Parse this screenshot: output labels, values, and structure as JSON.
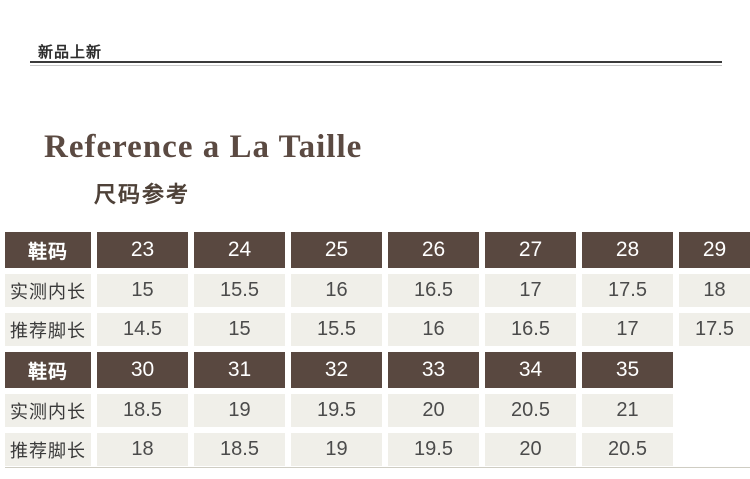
{
  "page": {
    "banner": "新品上新",
    "title": "Reference a La Taille",
    "subtitle": "尺码参考"
  },
  "colors": {
    "header_bg": "#594840",
    "cell_bg": "#f0efe9",
    "title_brown": "#5b4a42",
    "banner_text": "#2e2e2e"
  },
  "size_table": {
    "sections": [
      {
        "header": {
          "label": "鞋码",
          "sizes": [
            "23",
            "24",
            "25",
            "26",
            "27",
            "28",
            "29"
          ]
        },
        "rows": [
          {
            "label": "实测内长",
            "values": [
              "15",
              "15.5",
              "16",
              "16.5",
              "17",
              "17.5",
              "18"
            ]
          },
          {
            "label": "推荐脚长",
            "values": [
              "14.5",
              "15",
              "15.5",
              "16",
              "16.5",
              "17",
              "17.5"
            ]
          }
        ]
      },
      {
        "header": {
          "label": "鞋码",
          "sizes": [
            "30",
            "31",
            "32",
            "33",
            "34",
            "35"
          ]
        },
        "rows": [
          {
            "label": "实测内长",
            "values": [
              "18.5",
              "19",
              "19.5",
              "20",
              "20.5",
              "21"
            ]
          },
          {
            "label": "推荐脚长",
            "values": [
              "18",
              "18.5",
              "19",
              "19.5",
              "20",
              "20.5"
            ]
          }
        ]
      }
    ]
  }
}
